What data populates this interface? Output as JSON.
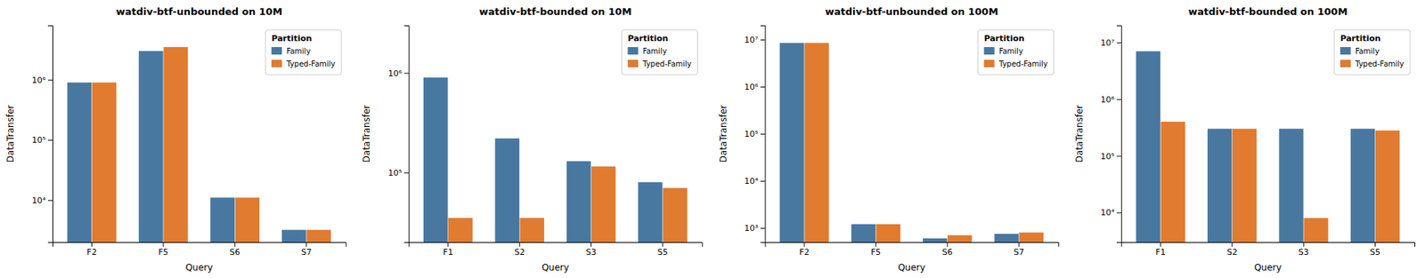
{
  "chart_data": [
    {
      "type": "bar",
      "title": "watdiv-btf-unbounded on 10M",
      "xlabel": "Query",
      "ylabel": "DataTransfer",
      "categories": [
        "F2",
        "F5",
        "S6",
        "S7"
      ],
      "series": [
        {
          "name": "Family",
          "color": "#4878a0",
          "values": [
            900000,
            3000000,
            11000,
            3200
          ]
        },
        {
          "name": "Typed-Family",
          "color": "#e07b30",
          "values": [
            900000,
            3500000,
            11000,
            3200
          ]
        }
      ],
      "log": "y",
      "ylim": [
        2000,
        8000000
      ],
      "yticks": [
        {
          "value": 10000,
          "label": "10⁴"
        },
        {
          "value": 100000,
          "label": "10⁵"
        },
        {
          "value": 1000000,
          "label": "10⁶"
        }
      ],
      "legend": "upper right",
      "legend_title": "Partition",
      "grid": false
    },
    {
      "type": "bar",
      "title": "watdiv-btf-bounded on 10M",
      "xlabel": "Query",
      "ylabel": "DataTransfer",
      "categories": [
        "F1",
        "S2",
        "S3",
        "S5"
      ],
      "series": [
        {
          "name": "Family",
          "color": "#4878a0",
          "values": [
            900000,
            220000,
            130000,
            80000
          ]
        },
        {
          "name": "Typed-Family",
          "color": "#e07b30",
          "values": [
            35000,
            35000,
            115000,
            70000
          ]
        }
      ],
      "log": "y",
      "ylim": [
        20000,
        3000000
      ],
      "yticks": [
        {
          "value": 100000,
          "label": "10⁵"
        },
        {
          "value": 1000000,
          "label": "10⁶"
        }
      ],
      "legend": "upper right",
      "legend_title": "Partition",
      "grid": false
    },
    {
      "type": "bar",
      "title": "watdiv-btf-unbounded on 100M",
      "xlabel": "Query",
      "ylabel": "DataTransfer",
      "categories": [
        "F2",
        "F5",
        "S6",
        "S7"
      ],
      "series": [
        {
          "name": "Family",
          "color": "#4878a0",
          "values": [
            8500000,
            1200,
            600,
            750
          ]
        },
        {
          "name": "Typed-Family",
          "color": "#e07b30",
          "values": [
            8500000,
            1200,
            700,
            800
          ]
        }
      ],
      "log": "y",
      "ylim": [
        500,
        20000000
      ],
      "yticks": [
        {
          "value": 1000,
          "label": "10³"
        },
        {
          "value": 10000,
          "label": "10⁴"
        },
        {
          "value": 100000,
          "label": "10⁵"
        },
        {
          "value": 1000000,
          "label": "10⁶"
        },
        {
          "value": 10000000,
          "label": "10⁷"
        }
      ],
      "legend": "upper right",
      "legend_title": "Partition",
      "grid": false
    },
    {
      "type": "bar",
      "title": "watdiv-btf-bounded on 100M",
      "xlabel": "Query",
      "ylabel": "DataTransfer",
      "categories": [
        "F1",
        "S2",
        "S3",
        "S5"
      ],
      "series": [
        {
          "name": "Family",
          "color": "#4878a0",
          "values": [
            7000000,
            300000,
            300000,
            300000
          ]
        },
        {
          "name": "Typed-Family",
          "color": "#e07b30",
          "values": [
            400000,
            300000,
            8000,
            280000
          ]
        }
      ],
      "log": "y",
      "ylim": [
        3000,
        20000000
      ],
      "yticks": [
        {
          "value": 10000,
          "label": "10⁴"
        },
        {
          "value": 100000,
          "label": "10⁵"
        },
        {
          "value": 1000000,
          "label": "10⁶"
        },
        {
          "value": 10000000,
          "label": "10⁷"
        }
      ],
      "legend": "upper right",
      "legend_title": "Partition",
      "grid": false
    }
  ]
}
